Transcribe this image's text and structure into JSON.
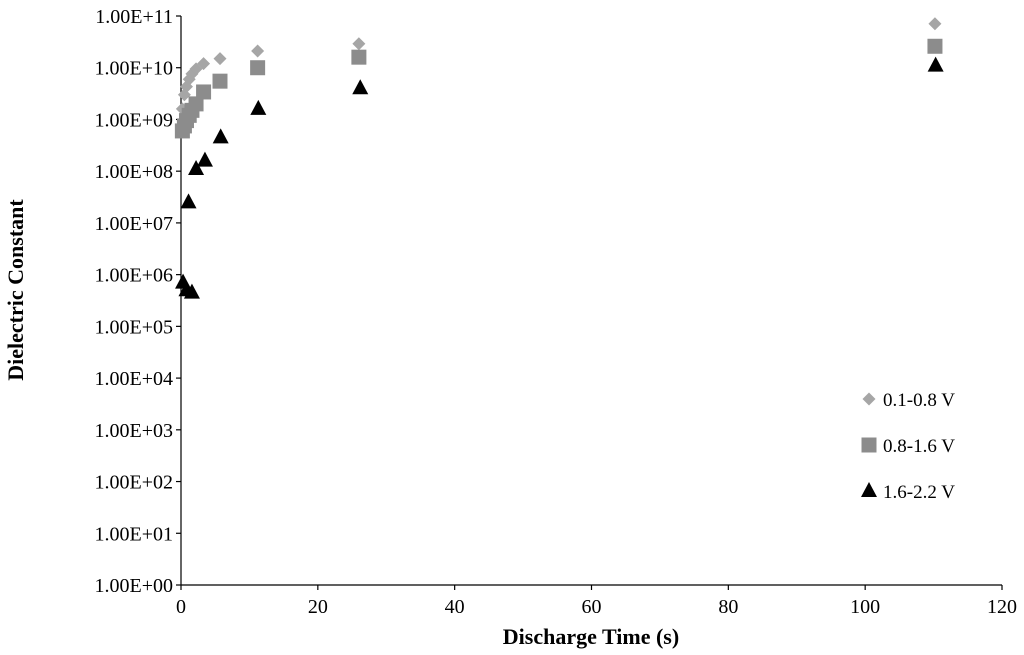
{
  "chart_data": {
    "type": "scatter",
    "title": "",
    "xlabel": "Discharge Time (s)",
    "ylabel": "Dielectric Constant",
    "xlim": [
      0,
      120
    ],
    "ylim": [
      1,
      100000000000
    ],
    "y_scale": "log",
    "grid": false,
    "legend_position": "right",
    "x_ticks": [
      0,
      20,
      40,
      60,
      80,
      100,
      120
    ],
    "x_tick_labels": [
      "0",
      "20",
      "40",
      "60",
      "80",
      "100",
      "120"
    ],
    "y_ticks": [
      1,
      10,
      100,
      1000,
      10000,
      100000,
      1000000,
      10000000,
      100000000,
      1000000000,
      10000000000,
      100000000000
    ],
    "y_tick_labels": [
      "1.00E+00",
      "1.00E+01",
      "1.00E+02",
      "1.00E+03",
      "1.00E+04",
      "1.00E+05",
      "1.00E+06",
      "1.00E+07",
      "1.00E+08",
      "1.00E+09",
      "1.00E+10",
      "1.00E+11"
    ],
    "series": [
      {
        "name": "0.1-0.8 V",
        "marker": "diamond",
        "color": "#a6a6a6",
        "x": [
          0.2,
          0.5,
          0.8,
          1.2,
          1.6,
          2.2,
          3.3,
          5.7,
          11.2,
          26.0,
          110.2
        ],
        "y": [
          1600000000.0,
          3000000000.0,
          4300000000.0,
          6000000000.0,
          7600000000.0,
          9500000000.0,
          12000000000.0,
          15000000000.0,
          21000000000.0,
          29000000000.0,
          71000000000.0
        ]
      },
      {
        "name": "0.8-1.6 V",
        "marker": "square",
        "color": "#8c8c8c",
        "x": [
          0.2,
          0.5,
          0.8,
          1.2,
          1.6,
          2.2,
          3.3,
          5.7,
          11.2,
          26.0,
          110.2
        ],
        "y": [
          600000000.0,
          750000000.0,
          950000000.0,
          1200000000.0,
          1500000000.0,
          2000000000.0,
          3400000000.0,
          5500000000.0,
          10000000000.0,
          16000000000.0,
          26000000000.0
        ]
      },
      {
        "name": "1.6-2.2 V",
        "marker": "triangle",
        "color": "#000000",
        "x": [
          0.3,
          0.8,
          1.1,
          1.6,
          2.2,
          3.5,
          5.8,
          11.3,
          26.2,
          110.3
        ],
        "y": [
          700000.0,
          500000.0,
          25000000.0,
          450000.0,
          110000000.0,
          160000000.0,
          450000000.0,
          1600000000.0,
          4000000000.0,
          11000000000.0
        ]
      }
    ]
  }
}
